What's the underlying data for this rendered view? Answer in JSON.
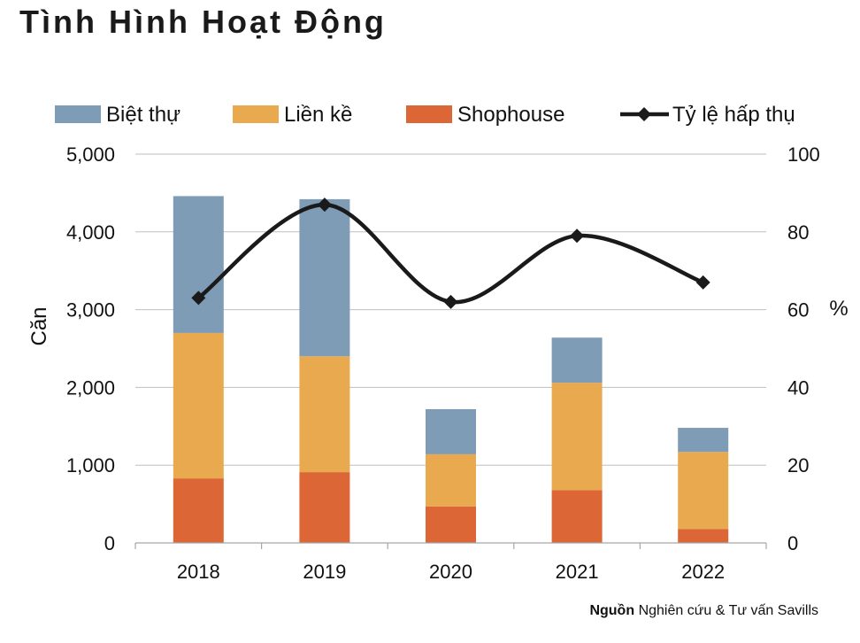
{
  "page_title": "Tình Hình Hoạt Động",
  "source": {
    "bold": "Nguồn",
    "text": "Nghiên cứu & Tư vấn Savills"
  },
  "colors": {
    "biet_thu": "#7f9cb6",
    "lien_ke": "#e8a94f",
    "shophouse": "#dc6635",
    "line": "#1a1a1a",
    "grid": "#bfbfbf"
  },
  "chart_data": {
    "type": "bar",
    "stacked": true,
    "categories": [
      "2018",
      "2019",
      "2020",
      "2021",
      "2022"
    ],
    "series": [
      {
        "name": "Shophouse",
        "values": [
          830,
          910,
          470,
          680,
          180
        ]
      },
      {
        "name": "Liền kề",
        "values": [
          1870,
          1490,
          670,
          1380,
          990
        ]
      },
      {
        "name": "Biệt thự",
        "values": [
          1760,
          2020,
          580,
          580,
          310
        ]
      }
    ],
    "line_series": {
      "name": "Tỷ lệ hấp thụ",
      "values": [
        63,
        87,
        62,
        79,
        67
      ],
      "axis": "right"
    },
    "legend": [
      "Biệt thự",
      "Liền kề",
      "Shophouse",
      "Tỷ lệ hấp thụ"
    ],
    "ylabel": "Căn",
    "ylabel_right": "%",
    "ylim": [
      0,
      5000
    ],
    "ylim_right": [
      0,
      100
    ],
    "yticks": [
      "0",
      "1,000",
      "2,000",
      "3,000",
      "4,000",
      "5,000"
    ],
    "yticks_right": [
      "0",
      "20",
      "40",
      "60",
      "80",
      "100"
    ],
    "legend_position": "top"
  }
}
